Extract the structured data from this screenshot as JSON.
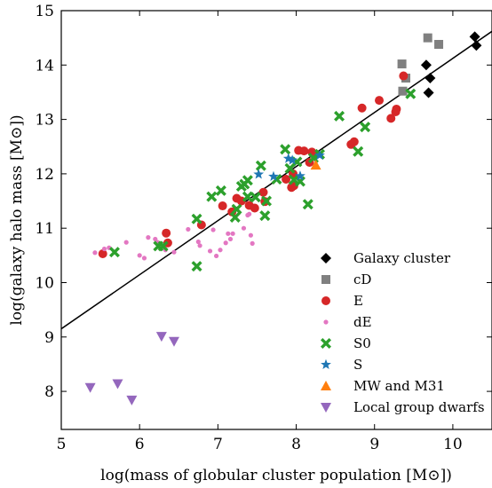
{
  "chart_data": {
    "type": "scatter",
    "xlabel": "log(mass of globular cluster population [M⊙])",
    "ylabel": "log(galaxy halo mass [M⊙])",
    "xlim": [
      5,
      10.5
    ],
    "ylim": [
      7.3,
      15
    ],
    "xticks": [
      5,
      6,
      7,
      8,
      9,
      10
    ],
    "yticks": [
      8,
      9,
      10,
      11,
      12,
      13,
      14,
      15
    ],
    "grid": false,
    "legend_position": "lower-right",
    "fit_line": {
      "x": [
        5,
        10.5
      ],
      "y": [
        9.15,
        14.62
      ]
    },
    "series": [
      {
        "name": "Galaxy cluster",
        "marker": "diamond",
        "color": "#000000",
        "points": [
          [
            9.66,
            14.0
          ],
          [
            9.71,
            13.76
          ],
          [
            9.69,
            13.49
          ],
          [
            10.28,
            14.52
          ],
          [
            10.3,
            14.36
          ]
        ]
      },
      {
        "name": "cD",
        "marker": "square",
        "color": "#808080",
        "points": [
          [
            9.35,
            14.02
          ],
          [
            9.36,
            13.52
          ],
          [
            9.4,
            13.76
          ],
          [
            9.68,
            14.5
          ],
          [
            9.82,
            14.38
          ]
        ]
      },
      {
        "name": "E",
        "marker": "circle",
        "color": "#d62728",
        "points": [
          [
            5.53,
            10.53
          ],
          [
            6.34,
            10.91
          ],
          [
            6.36,
            10.73
          ],
          [
            6.79,
            11.06
          ],
          [
            7.06,
            11.41
          ],
          [
            7.18,
            11.3
          ],
          [
            7.24,
            11.55
          ],
          [
            7.3,
            11.5
          ],
          [
            7.4,
            11.42
          ],
          [
            7.47,
            11.37
          ],
          [
            7.58,
            11.66
          ],
          [
            7.6,
            11.49
          ],
          [
            7.87,
            11.9
          ],
          [
            7.94,
            11.75
          ],
          [
            7.96,
            12.0
          ],
          [
            7.97,
            11.78
          ],
          [
            8.03,
            12.43
          ],
          [
            8.1,
            12.42
          ],
          [
            8.17,
            12.21
          ],
          [
            8.2,
            12.4
          ],
          [
            8.7,
            12.54
          ],
          [
            8.74,
            12.59
          ],
          [
            8.84,
            13.21
          ],
          [
            9.06,
            13.35
          ],
          [
            9.21,
            13.02
          ],
          [
            9.27,
            13.14
          ],
          [
            9.28,
            13.19
          ],
          [
            9.37,
            13.8
          ]
        ]
      },
      {
        "name": "dE",
        "marker": "small-circle",
        "color": "#e377c2",
        "points": [
          [
            5.43,
            10.55
          ],
          [
            5.55,
            10.62
          ],
          [
            5.61,
            10.64
          ],
          [
            5.83,
            10.74
          ],
          [
            6.0,
            10.5
          ],
          [
            6.06,
            10.45
          ],
          [
            6.11,
            10.83
          ],
          [
            6.2,
            10.8
          ],
          [
            6.23,
            10.74
          ],
          [
            6.33,
            10.6
          ],
          [
            6.44,
            10.56
          ],
          [
            6.62,
            10.98
          ],
          [
            6.75,
            10.75
          ],
          [
            6.77,
            10.68
          ],
          [
            6.9,
            10.58
          ],
          [
            6.94,
            10.97
          ],
          [
            6.98,
            10.49
          ],
          [
            7.03,
            10.6
          ],
          [
            7.1,
            10.73
          ],
          [
            7.13,
            10.9
          ],
          [
            7.16,
            10.8
          ],
          [
            7.19,
            10.9
          ],
          [
            7.33,
            11.0
          ],
          [
            7.38,
            11.24
          ],
          [
            7.4,
            11.26
          ],
          [
            7.42,
            10.87
          ],
          [
            7.44,
            10.72
          ]
        ]
      },
      {
        "name": "S0",
        "marker": "x-thick",
        "color": "#2ca02c",
        "points": [
          [
            5.68,
            10.56
          ],
          [
            6.24,
            10.67
          ],
          [
            6.3,
            10.67
          ],
          [
            6.73,
            10.3
          ],
          [
            6.73,
            11.17
          ],
          [
            6.92,
            11.58
          ],
          [
            7.04,
            11.69
          ],
          [
            7.22,
            11.2
          ],
          [
            7.24,
            11.35
          ],
          [
            7.3,
            11.77
          ],
          [
            7.34,
            11.81
          ],
          [
            7.38,
            11.88
          ],
          [
            7.38,
            11.58
          ],
          [
            7.48,
            11.57
          ],
          [
            7.55,
            12.15
          ],
          [
            7.6,
            11.23
          ],
          [
            7.62,
            11.5
          ],
          [
            7.75,
            11.9
          ],
          [
            7.86,
            12.45
          ],
          [
            7.92,
            12.1
          ],
          [
            7.97,
            11.89
          ],
          [
            8.01,
            12.22
          ],
          [
            8.05,
            11.86
          ],
          [
            8.15,
            11.44
          ],
          [
            8.22,
            12.29
          ],
          [
            8.3,
            12.36
          ],
          [
            8.55,
            13.06
          ],
          [
            8.79,
            12.41
          ],
          [
            8.88,
            12.86
          ],
          [
            9.46,
            13.47
          ]
        ]
      },
      {
        "name": "S",
        "marker": "star",
        "color": "#1f77b4",
        "points": [
          [
            7.52,
            11.99
          ],
          [
            7.71,
            11.95
          ],
          [
            7.9,
            12.28
          ],
          [
            7.95,
            12.25
          ],
          [
            8.05,
            11.96
          ],
          [
            8.3,
            12.34
          ]
        ]
      },
      {
        "name": "MW and M31",
        "marker": "triangle-up",
        "color": "#ff7f0e",
        "points": [
          [
            8.25,
            12.16
          ]
        ]
      },
      {
        "name": "Local group dwarfs",
        "marker": "triangle-down",
        "color": "#9467bd",
        "points": [
          [
            5.37,
            8.07
          ],
          [
            5.72,
            8.14
          ],
          [
            5.9,
            7.84
          ],
          [
            6.28,
            9.01
          ],
          [
            6.44,
            8.92
          ]
        ]
      }
    ]
  }
}
